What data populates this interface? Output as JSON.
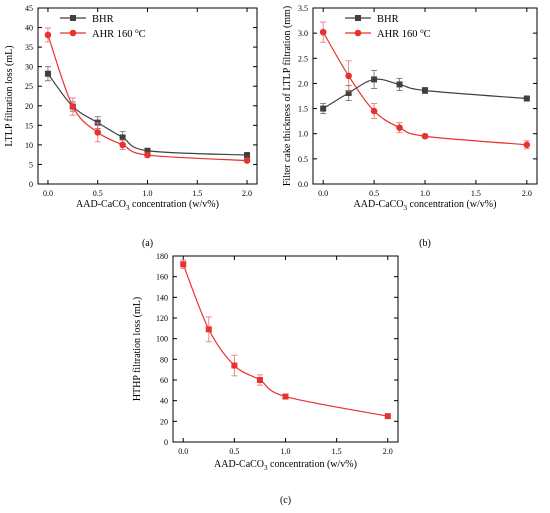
{
  "chart_data": [
    {
      "type": "line",
      "panel_label": "(a)",
      "xlabel_parts": [
        "AAD-CaCO",
        "3",
        " concentration (w/v%)"
      ],
      "ylabel": "LTLP filtration loss (mL)",
      "xlim": [
        -0.1,
        2.1
      ],
      "ylim": [
        0,
        45
      ],
      "xticks": [
        0.0,
        0.5,
        1.0,
        1.5,
        2.0
      ],
      "xtick_labels": [
        "0.0",
        "0.5",
        "1.0",
        "1.5",
        "2.0"
      ],
      "yticks": [
        0,
        5,
        10,
        15,
        20,
        25,
        30,
        35,
        40,
        45
      ],
      "grid": false,
      "legend_position": "top-left",
      "series": [
        {
          "name": "BHR",
          "color": "#404040",
          "marker": "square",
          "x": [
            0,
            0.25,
            0.5,
            0.75,
            1.0,
            2.0
          ],
          "y": [
            28.2,
            19.8,
            15.7,
            11.9,
            8.5,
            7.4
          ],
          "err": [
            1.8,
            1.2,
            1.5,
            1.5,
            0.5,
            0.3
          ]
        },
        {
          "name_parts": [
            "AHR 160 ",
            "o",
            "C"
          ],
          "color": "#e8322e",
          "marker": "circle",
          "x": [
            0,
            0.25,
            0.5,
            0.75,
            1.0,
            2.0
          ],
          "y": [
            38.1,
            19.8,
            13.2,
            10.0,
            7.4,
            6.0
          ],
          "err": [
            1.8,
            2.2,
            2.4,
            1.2,
            0.5,
            0.4
          ]
        }
      ]
    },
    {
      "type": "line",
      "panel_label": "(b)",
      "xlabel_parts": [
        "AAD-CaCO",
        "3",
        " concentration (w/v%)"
      ],
      "ylabel": "Filter cake thickness of LTLP filtration (mm)",
      "xlim": [
        -0.1,
        2.1
      ],
      "ylim": [
        0.0,
        3.5
      ],
      "xticks": [
        0.0,
        0.5,
        1.0,
        1.5,
        2.0
      ],
      "xtick_labels": [
        "0.0",
        "0.5",
        "1.0",
        "1.5",
        "2.0"
      ],
      "yticks": [
        0.0,
        0.5,
        1.0,
        1.5,
        2.0,
        2.5,
        3.0,
        3.5
      ],
      "ytick_labels": [
        "0.0",
        "0.5",
        "1.0",
        "1.5",
        "2.0",
        "2.5",
        "3.0",
        "3.5"
      ],
      "grid": false,
      "legend_position": "top-center",
      "series": [
        {
          "name": "BHR",
          "color": "#404040",
          "marker": "square",
          "x": [
            0,
            0.25,
            0.5,
            0.75,
            1.0,
            2.0
          ],
          "y": [
            1.5,
            1.81,
            2.08,
            1.98,
            1.86,
            1.7
          ],
          "err": [
            0.1,
            0.15,
            0.18,
            0.12,
            0.06,
            0.02
          ]
        },
        {
          "name_parts": [
            "AHR 160 ",
            "o",
            "C"
          ],
          "color": "#e8322e",
          "marker": "circle",
          "x": [
            0,
            0.25,
            0.5,
            0.75,
            1.0,
            2.0
          ],
          "y": [
            3.02,
            2.15,
            1.45,
            1.12,
            0.95,
            0.78
          ],
          "err": [
            0.2,
            0.3,
            0.15,
            0.1,
            0.04,
            0.08
          ]
        }
      ]
    },
    {
      "type": "line",
      "panel_label": "(c)",
      "xlabel_parts": [
        "AAD-CaCO",
        "3",
        " concentration (w/v%)"
      ],
      "ylabel": "HTHP filtration loss (mL)",
      "xlim": [
        -0.1,
        2.1
      ],
      "ylim": [
        0,
        180
      ],
      "xticks": [
        0.0,
        0.5,
        1.0,
        1.5,
        2.0
      ],
      "xtick_labels": [
        "0.0",
        "0.5",
        "1.0",
        "1.5",
        "2.0"
      ],
      "yticks": [
        0,
        20,
        40,
        60,
        80,
        100,
        120,
        140,
        160,
        180
      ],
      "grid": false,
      "series": [
        {
          "color": "#e8322e",
          "marker": "square",
          "x": [
            0,
            0.25,
            0.5,
            0.75,
            1.0,
            2.0
          ],
          "y": [
            172,
            109,
            74,
            60,
            44,
            25
          ],
          "err": [
            4,
            12,
            10,
            5,
            2,
            2
          ]
        }
      ]
    }
  ]
}
